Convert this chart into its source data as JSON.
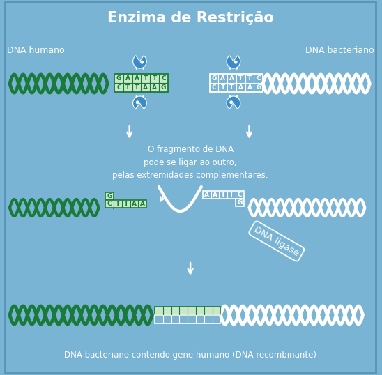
{
  "bg_color": "#7ab4d4",
  "border_color": "#5a94b4",
  "title": "Enzima de Restrição",
  "title_color": "white",
  "title_fontsize": 15,
  "label_dna_humano": "DNA humano",
  "label_dna_bacteriano": "DNA bacteriano",
  "label_bottom": "DNA bacteriano contendo gene humano (DNA recombinante)",
  "label_dna_ligase": "DNA ligase",
  "text_middle": "O fragmento de DNA\npode se ligar ao outro,\npelas extremidades complementares.",
  "green": "#1a7a3a",
  "white": "#ffffff",
  "grid_fill": "#c8e8c8",
  "enzyme_blue": "#3a8cc8"
}
